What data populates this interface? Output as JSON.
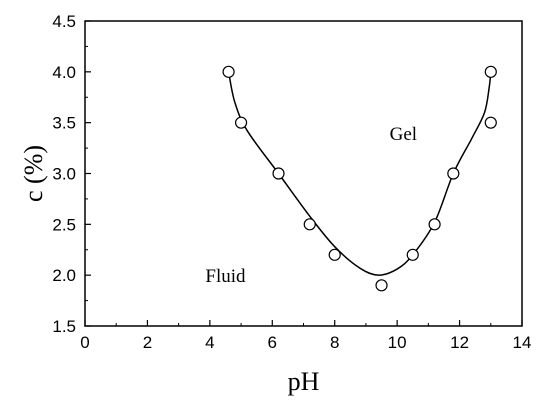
{
  "chart_data": {
    "type": "scatter",
    "title": "",
    "xlabel": "pH",
    "ylabel": "c (%)",
    "xlim": [
      0,
      14
    ],
    "ylim": [
      1.5,
      4.5
    ],
    "x_ticks": [
      0,
      2,
      4,
      6,
      8,
      10,
      12,
      14
    ],
    "x_tick_labels": [
      "0",
      "2",
      "4",
      "6",
      "8",
      "10",
      "12",
      "14"
    ],
    "y_ticks": [
      1.5,
      2.0,
      2.5,
      3.0,
      3.5,
      4.0,
      4.5
    ],
    "y_tick_labels": [
      "1.5",
      "2.0",
      "2.5",
      "3.0",
      "3.5",
      "4.0",
      "4.5"
    ],
    "grid": false,
    "legend": "none",
    "series": [
      {
        "marker": "open-circle",
        "points": [
          {
            "x": 4.6,
            "y": 4.0
          },
          {
            "x": 5.0,
            "y": 3.5
          },
          {
            "x": 6.2,
            "y": 3.0
          },
          {
            "x": 7.2,
            "y": 2.5
          },
          {
            "x": 8.0,
            "y": 2.2
          },
          {
            "x": 9.5,
            "y": 1.9
          },
          {
            "x": 10.5,
            "y": 2.2
          },
          {
            "x": 11.2,
            "y": 2.5
          },
          {
            "x": 11.8,
            "y": 3.0
          },
          {
            "x": 13.0,
            "y": 3.5
          },
          {
            "x": 13.0,
            "y": 4.0
          }
        ]
      }
    ],
    "boundary_curve": [
      {
        "x": 4.6,
        "y": 4.0
      },
      {
        "x": 4.8,
        "y": 3.7
      },
      {
        "x": 5.2,
        "y": 3.42
      },
      {
        "x": 6.2,
        "y": 3.0
      },
      {
        "x": 7.2,
        "y": 2.58
      },
      {
        "x": 8.0,
        "y": 2.28
      },
      {
        "x": 8.8,
        "y": 2.07
      },
      {
        "x": 9.4,
        "y": 2.0
      },
      {
        "x": 10.0,
        "y": 2.06
      },
      {
        "x": 10.5,
        "y": 2.2
      },
      {
        "x": 11.2,
        "y": 2.52
      },
      {
        "x": 11.8,
        "y": 3.0
      },
      {
        "x": 12.4,
        "y": 3.35
      },
      {
        "x": 12.8,
        "y": 3.6
      },
      {
        "x": 12.95,
        "y": 3.85
      },
      {
        "x": 13.0,
        "y": 4.0
      }
    ],
    "annotations": [
      {
        "text": "Gel",
        "x": 10.2,
        "y": 3.4
      },
      {
        "text": "Fluid",
        "x": 4.5,
        "y": 2.0
      }
    ]
  }
}
